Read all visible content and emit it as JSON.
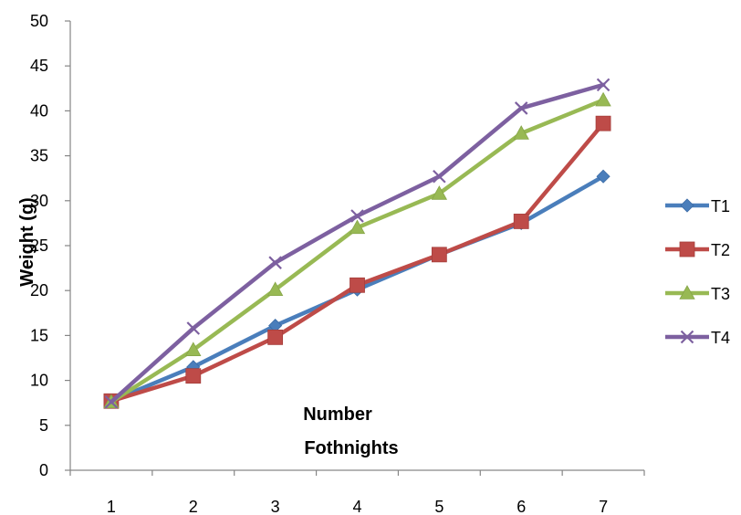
{
  "chart_data": {
    "type": "line",
    "categories": [
      "1",
      "2",
      "3",
      "4",
      "5",
      "6",
      "7"
    ],
    "series": [
      {
        "name": "T1",
        "values": [
          7.7,
          11.5,
          16.1,
          20.1,
          24.0,
          27.5,
          32.7
        ],
        "color": "#4a7ebb",
        "marker": "diamond"
      },
      {
        "name": "T2",
        "values": [
          7.7,
          10.5,
          14.8,
          20.6,
          24.0,
          27.7,
          38.6
        ],
        "color": "#be4b48",
        "marker": "square"
      },
      {
        "name": "T3",
        "values": [
          7.6,
          13.4,
          20.1,
          27.0,
          30.8,
          37.5,
          41.2
        ],
        "color": "#98b954",
        "marker": "triangle"
      },
      {
        "name": "T4",
        "values": [
          7.6,
          15.8,
          23.1,
          28.3,
          32.7,
          40.3,
          42.9
        ],
        "color": "#7d60a0",
        "marker": "x"
      }
    ],
    "xlabel_lines": [
      "Number",
      "Fothnights"
    ],
    "ylabel": "Weight (g)",
    "yticks": [
      "0",
      "5",
      "10",
      "15",
      "20",
      "25",
      "30",
      "35",
      "40",
      "45",
      "50"
    ],
    "ylim": [
      0,
      50
    ],
    "grid": false,
    "legend_position": "right"
  }
}
